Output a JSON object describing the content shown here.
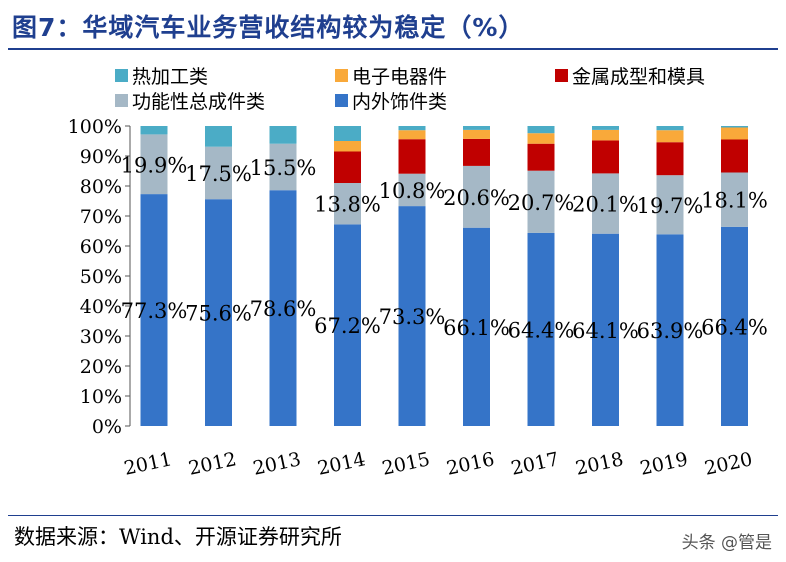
{
  "title": "图7：华域汽车业务营收结构较为稳定（%）",
  "source": "数据来源：Wind、开源证券研究所",
  "watermark": "头条 @管是",
  "chart_data": {
    "type": "bar",
    "stacked": true,
    "categories": [
      "2011",
      "2012",
      "2013",
      "2014",
      "2015",
      "2016",
      "2017",
      "2018",
      "2019",
      "2020"
    ],
    "ylim": [
      0,
      100
    ],
    "yticks": [
      "0%",
      "10%",
      "20%",
      "30%",
      "40%",
      "50%",
      "60%",
      "70%",
      "80%",
      "90%",
      "100%"
    ],
    "legend_placement": "top",
    "series": [
      {
        "name": "内外饰件类",
        "color": "#3574C8",
        "values": [
          77.3,
          75.6,
          78.6,
          67.2,
          73.3,
          66.1,
          64.4,
          64.1,
          63.9,
          66.4
        ],
        "labels": [
          "77.3%",
          "75.6%",
          "78.6%",
          "67.2%",
          "73.3%",
          "66.1%",
          "64.4%",
          "64.1%",
          "63.9%",
          "66.4%"
        ]
      },
      {
        "name": "功能性总成件类",
        "color": "#A5B8C6",
        "values": [
          19.9,
          17.5,
          15.5,
          13.8,
          10.8,
          20.6,
          20.7,
          20.1,
          19.7,
          18.1
        ],
        "labels": [
          "19.9%",
          "17.5%",
          "15.5%",
          "13.8%",
          "10.8%",
          "20.6%",
          "20.7%",
          "20.1%",
          "19.7%",
          "18.1%"
        ]
      },
      {
        "name": "金属成型和模具",
        "color": "#C00000",
        "values": [
          0,
          0,
          0,
          10.5,
          11.5,
          9,
          9,
          11,
          11,
          11
        ]
      },
      {
        "name": "电子电器件",
        "color": "#F9A93A",
        "values": [
          0,
          0,
          0,
          3.5,
          3,
          3,
          3.5,
          3.5,
          4,
          4
        ]
      },
      {
        "name": "热加工类",
        "color": "#4BACC6",
        "values": [
          2.8,
          6.9,
          5.9,
          5.0,
          1.4,
          1.3,
          2.4,
          1.3,
          1.4,
          0.5
        ]
      }
    ],
    "legend_order": [
      4,
      3,
      2,
      1,
      0
    ]
  }
}
